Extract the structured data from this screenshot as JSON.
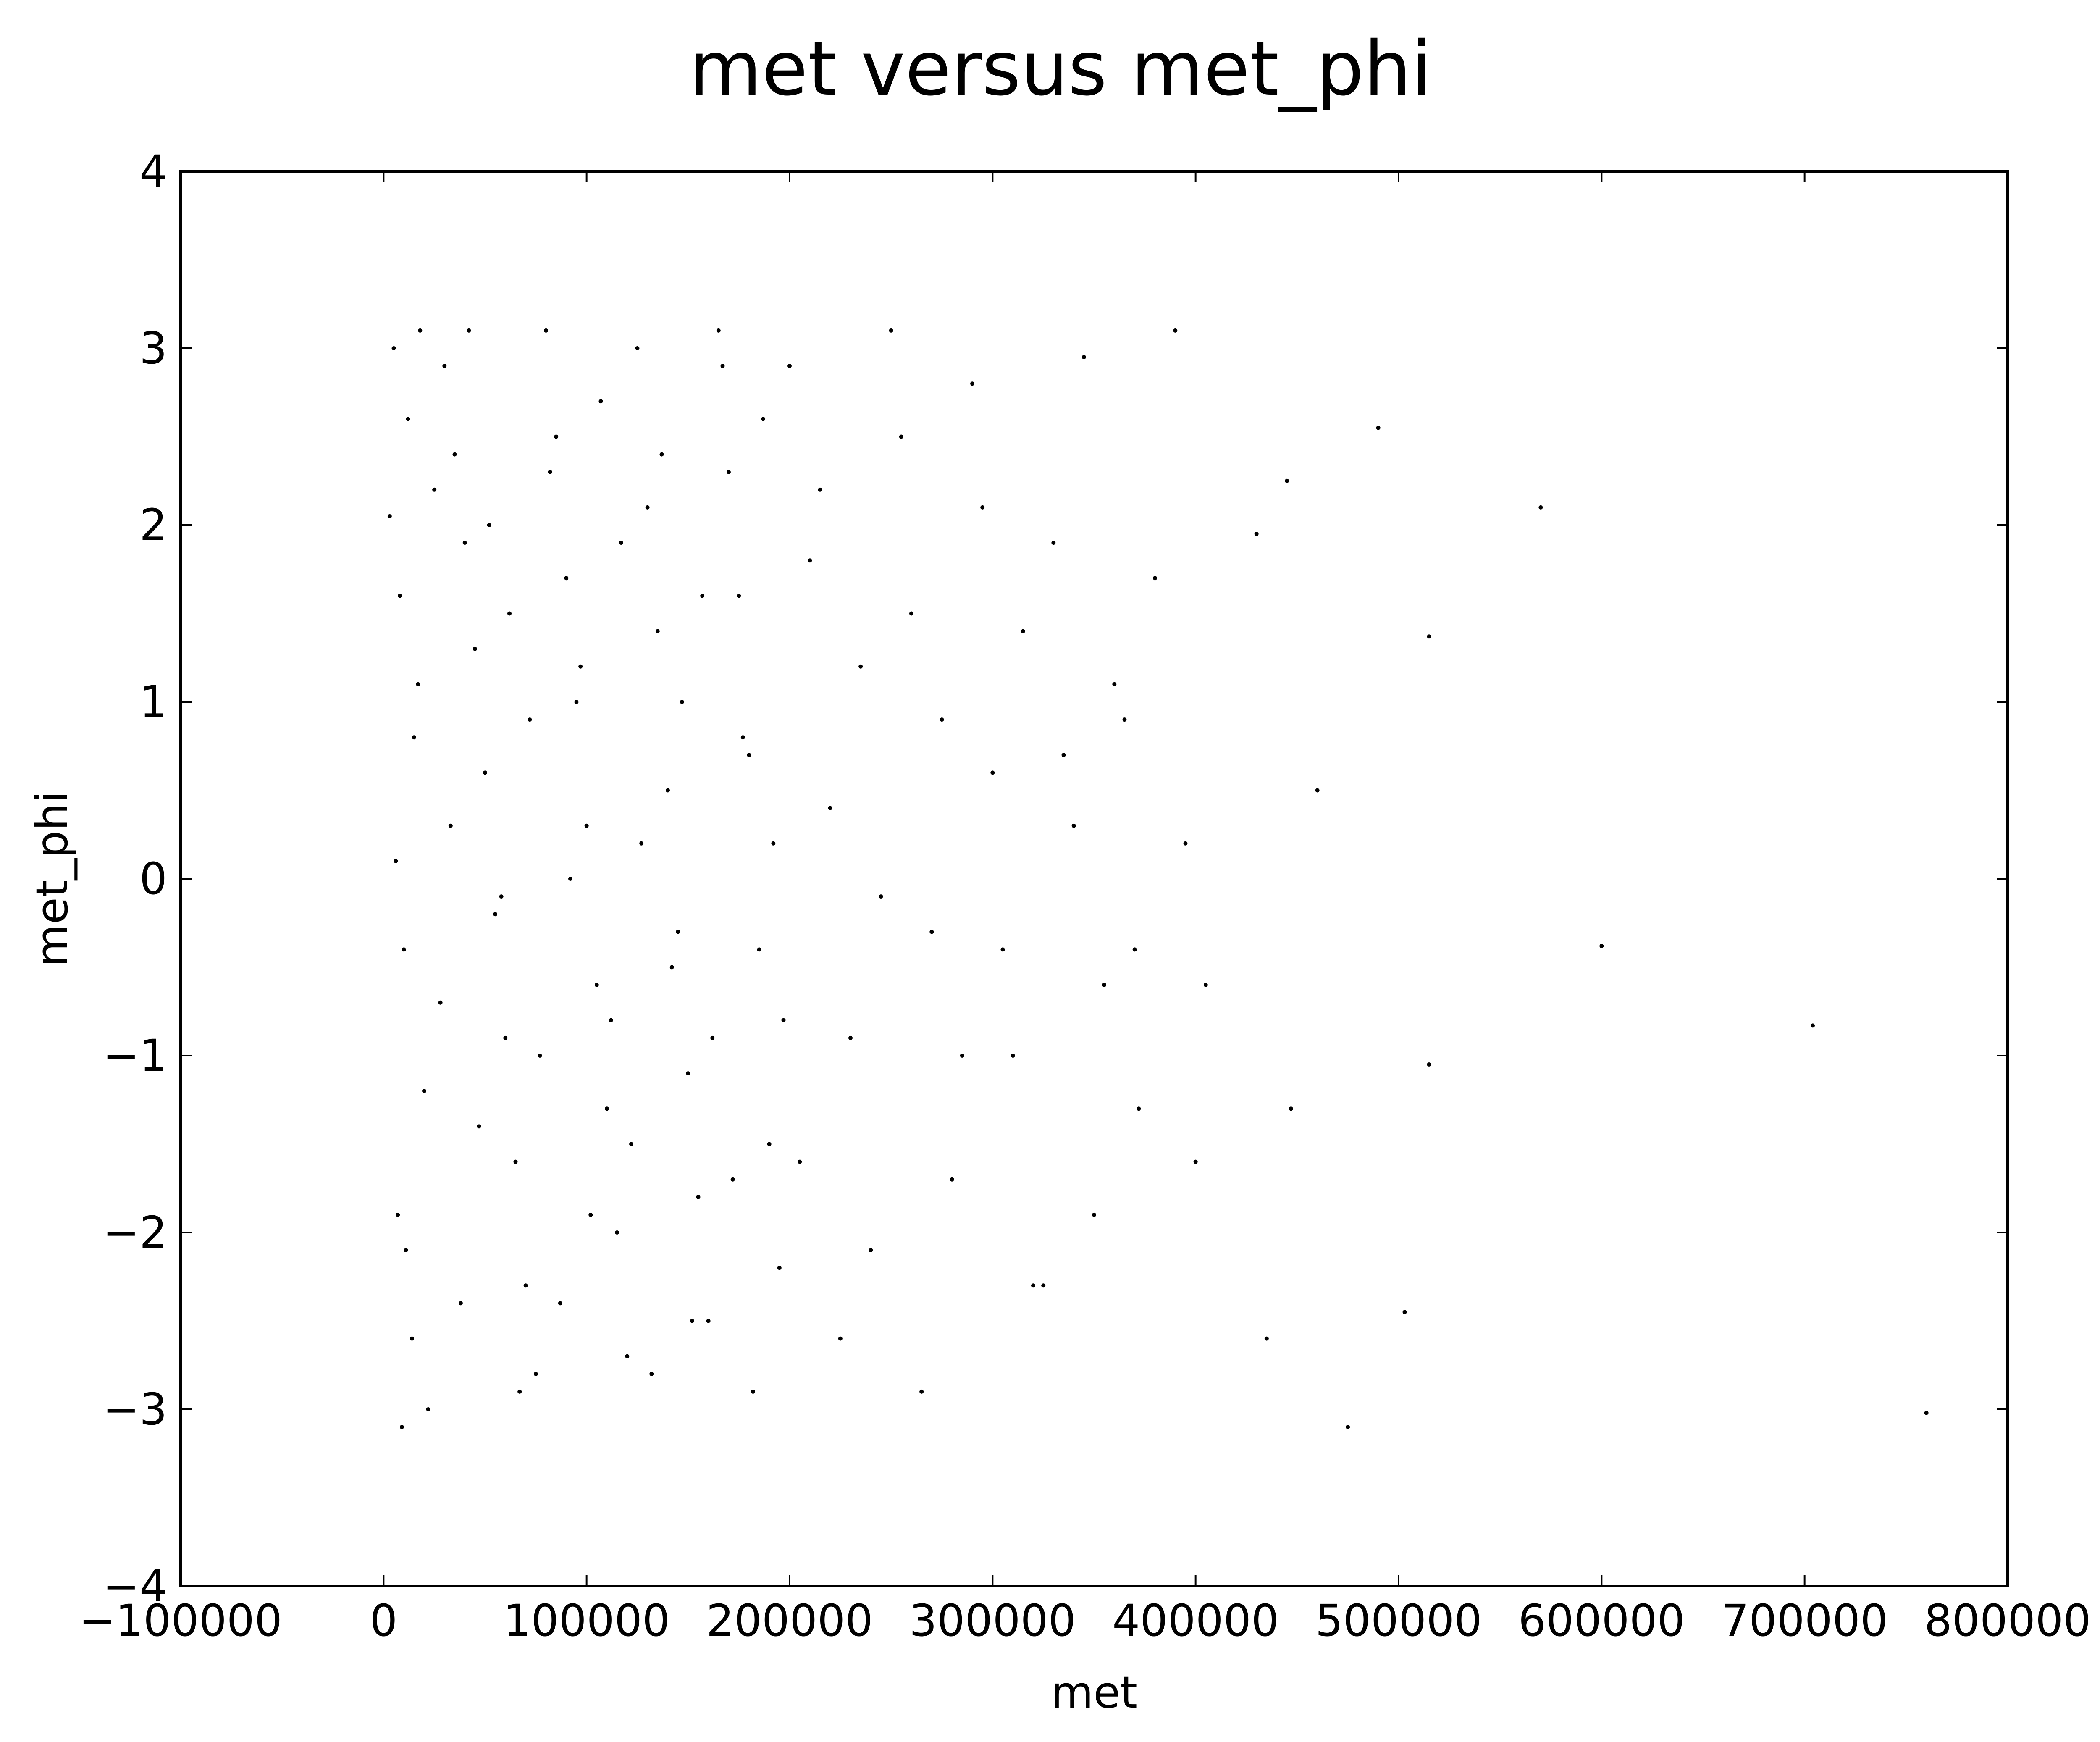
{
  "chart_data": {
    "type": "scatter",
    "title": "met versus met_phi",
    "xlabel": "met",
    "ylabel": "met_phi",
    "xlim": [
      -100000,
      800000
    ],
    "ylim": [
      -4,
      4
    ],
    "grid": false,
    "legend": "none",
    "point_color": "#000000",
    "x_ticks": [
      {
        "value": -100000,
        "label": "−100000"
      },
      {
        "value": 0,
        "label": "0"
      },
      {
        "value": 100000,
        "label": "100000"
      },
      {
        "value": 200000,
        "label": "200000"
      },
      {
        "value": 300000,
        "label": "300000"
      },
      {
        "value": 400000,
        "label": "400000"
      },
      {
        "value": 500000,
        "label": "500000"
      },
      {
        "value": 600000,
        "label": "600000"
      },
      {
        "value": 700000,
        "label": "700000"
      },
      {
        "value": 800000,
        "label": "800000"
      }
    ],
    "y_ticks": [
      {
        "value": -4,
        "label": "−4"
      },
      {
        "value": -3,
        "label": "−3"
      },
      {
        "value": -2,
        "label": "−2"
      },
      {
        "value": -1,
        "label": "−1"
      },
      {
        "value": 0,
        "label": "0"
      },
      {
        "value": 1,
        "label": "1"
      },
      {
        "value": 2,
        "label": "2"
      },
      {
        "value": 3,
        "label": "3"
      },
      {
        "value": 4,
        "label": "4"
      }
    ],
    "series": [
      {
        "points": [
          [
            5000,
            3.0
          ],
          [
            12000,
            2.6
          ],
          [
            18000,
            3.1
          ],
          [
            25000,
            2.2
          ],
          [
            8000,
            1.6
          ],
          [
            15000,
            0.8
          ],
          [
            6000,
            0.1
          ],
          [
            10000,
            -0.4
          ],
          [
            20000,
            -1.2
          ],
          [
            7000,
            -1.9
          ],
          [
            14000,
            -2.6
          ],
          [
            9000,
            -3.1
          ],
          [
            22000,
            -3.0
          ],
          [
            30000,
            2.9
          ],
          [
            35000,
            2.4
          ],
          [
            40000,
            1.9
          ],
          [
            45000,
            1.3
          ],
          [
            50000,
            0.6
          ],
          [
            55000,
            -0.2
          ],
          [
            60000,
            -0.9
          ],
          [
            65000,
            -1.6
          ],
          [
            70000,
            -2.3
          ],
          [
            75000,
            -2.8
          ],
          [
            80000,
            3.1
          ],
          [
            85000,
            2.5
          ],
          [
            90000,
            1.7
          ],
          [
            95000,
            1.0
          ],
          [
            100000,
            0.3
          ],
          [
            105000,
            -0.6
          ],
          [
            110000,
            -1.3
          ],
          [
            115000,
            -2.0
          ],
          [
            120000,
            -2.7
          ],
          [
            125000,
            3.0
          ],
          [
            130000,
            2.1
          ],
          [
            135000,
            1.4
          ],
          [
            140000,
            0.5
          ],
          [
            145000,
            -0.3
          ],
          [
            150000,
            -1.1
          ],
          [
            155000,
            -1.8
          ],
          [
            160000,
            -2.5
          ],
          [
            165000,
            3.1
          ],
          [
            170000,
            2.3
          ],
          [
            175000,
            1.6
          ],
          [
            180000,
            0.7
          ],
          [
            185000,
            -0.4
          ],
          [
            190000,
            -1.5
          ],
          [
            195000,
            -2.2
          ],
          [
            200000,
            2.9
          ],
          [
            210000,
            1.8
          ],
          [
            220000,
            0.4
          ],
          [
            230000,
            -0.9
          ],
          [
            240000,
            -2.1
          ],
          [
            250000,
            3.1
          ],
          [
            260000,
            1.5
          ],
          [
            270000,
            -0.3
          ],
          [
            280000,
            -1.7
          ],
          [
            290000,
            2.8
          ],
          [
            300000,
            0.6
          ],
          [
            310000,
            -1.0
          ],
          [
            320000,
            -2.3
          ],
          [
            330000,
            1.9
          ],
          [
            340000,
            0.3
          ],
          [
            350000,
            -1.9
          ],
          [
            360000,
            1.1
          ],
          [
            370000,
            -0.4
          ],
          [
            380000,
            1.7
          ],
          [
            390000,
            3.1
          ],
          [
            395000,
            0.2
          ],
          [
            400000,
            -1.6
          ],
          [
            405000,
            -0.6
          ],
          [
            430000,
            1.95
          ],
          [
            435000,
            -2.6
          ],
          [
            445000,
            2.25
          ],
          [
            447000,
            -1.3
          ],
          [
            460000,
            0.5
          ],
          [
            475000,
            -3.1
          ],
          [
            490000,
            2.55
          ],
          [
            503000,
            -2.45
          ],
          [
            515000,
            1.37
          ],
          [
            515000,
            -1.05
          ],
          [
            570000,
            2.1
          ],
          [
            600000,
            -0.38
          ],
          [
            704000,
            -0.83
          ],
          [
            760000,
            -3.02
          ],
          [
            3000,
            2.05
          ],
          [
            11000,
            -2.1
          ],
          [
            17000,
            1.1
          ],
          [
            28000,
            -0.7
          ],
          [
            33000,
            0.3
          ],
          [
            38000,
            -2.4
          ],
          [
            42000,
            3.1
          ],
          [
            47000,
            -1.4
          ],
          [
            52000,
            2.0
          ],
          [
            58000,
            -0.1
          ],
          [
            62000,
            1.5
          ],
          [
            67000,
            -2.9
          ],
          [
            72000,
            0.9
          ],
          [
            77000,
            -1.0
          ],
          [
            82000,
            2.3
          ],
          [
            87000,
            -2.4
          ],
          [
            92000,
            0.0
          ],
          [
            97000,
            1.2
          ],
          [
            102000,
            -1.9
          ],
          [
            107000,
            2.7
          ],
          [
            112000,
            -0.8
          ],
          [
            117000,
            1.9
          ],
          [
            122000,
            -1.5
          ],
          [
            127000,
            0.2
          ],
          [
            132000,
            -2.8
          ],
          [
            137000,
            2.4
          ],
          [
            142000,
            -0.5
          ],
          [
            147000,
            1.0
          ],
          [
            152000,
            -2.5
          ],
          [
            157000,
            1.6
          ],
          [
            162000,
            -0.9
          ],
          [
            167000,
            2.9
          ],
          [
            172000,
            -1.7
          ],
          [
            177000,
            0.8
          ],
          [
            182000,
            -2.9
          ],
          [
            187000,
            2.6
          ],
          [
            192000,
            0.2
          ],
          [
            197000,
            -0.8
          ],
          [
            205000,
            -1.6
          ],
          [
            215000,
            2.2
          ],
          [
            225000,
            -2.6
          ],
          [
            235000,
            1.2
          ],
          [
            245000,
            -0.1
          ],
          [
            255000,
            2.5
          ],
          [
            265000,
            -2.9
          ],
          [
            275000,
            0.9
          ],
          [
            285000,
            -1.0
          ],
          [
            295000,
            2.1
          ],
          [
            305000,
            -0.4
          ],
          [
            315000,
            1.4
          ],
          [
            325000,
            -2.3
          ],
          [
            335000,
            0.7
          ],
          [
            345000,
            2.95
          ],
          [
            355000,
            -0.6
          ],
          [
            365000,
            0.9
          ],
          [
            372000,
            -1.3
          ]
        ]
      }
    ]
  }
}
